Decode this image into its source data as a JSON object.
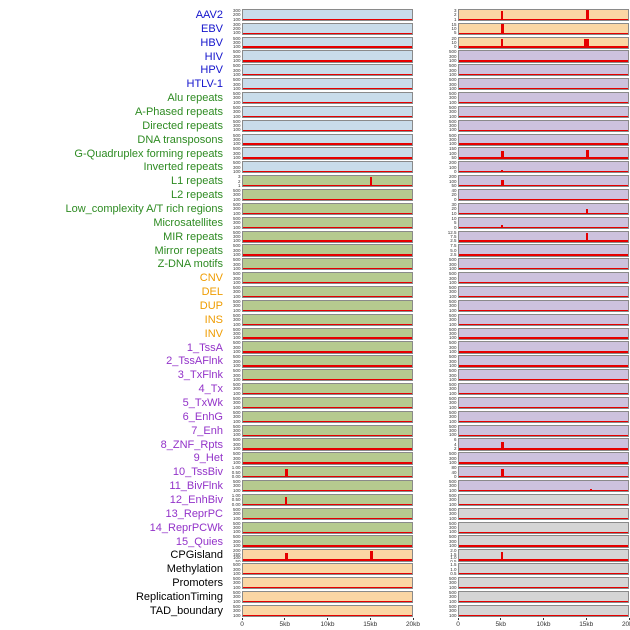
{
  "chart_data": {
    "type": "line",
    "description": "Per-feature signal profile tracks around a genomic position, two panel columns, red signal line on colored backgrounds",
    "x_axis": {
      "ticks": [
        "0",
        "5kb",
        "10kb",
        "15kb",
        "20kb"
      ],
      "range_kb": [
        0,
        20
      ]
    },
    "default_yticks": [
      "500",
      "300",
      "100"
    ],
    "rows": [
      {
        "label": "AAV2",
        "group": "virus",
        "left": {
          "bg": "blue",
          "yticks": [
            "300",
            "200",
            "100"
          ]
        },
        "right": {
          "bg": "orange",
          "yticks": [
            "3",
            "2",
            "1"
          ],
          "spikes": [
            {
              "pos_kb": 5,
              "rel_height": 0.92,
              "w": 2
            },
            {
              "pos_kb": 15,
              "rel_height": 0.95,
              "w": 3
            }
          ]
        }
      },
      {
        "label": "EBV",
        "group": "virus",
        "left": {
          "bg": "blue",
          "yticks": [
            "300",
            "200",
            "100"
          ]
        },
        "right": {
          "bg": "orange",
          "yticks": [
            "15",
            "10",
            "5"
          ],
          "spikes": [
            {
              "pos_kb": 5,
              "rel_height": 0.95,
              "w": 3
            }
          ]
        }
      },
      {
        "label": "HBV",
        "group": "virus",
        "left": {
          "bg": "blue"
        },
        "right": {
          "bg": "orange",
          "yticks": [
            "20",
            "10",
            "0"
          ],
          "spikes": [
            {
              "pos_kb": 5,
              "rel_height": 0.9,
              "w": 2
            },
            {
              "pos_kb": 14.8,
              "rel_height": 0.88,
              "w": 5
            }
          ]
        }
      },
      {
        "label": "HIV",
        "group": "virus",
        "left": {
          "bg": "blue"
        },
        "right": {
          "bg": "purple"
        }
      },
      {
        "label": "HPV",
        "group": "virus",
        "left": {
          "bg": "blue"
        },
        "right": {
          "bg": "purple"
        }
      },
      {
        "label": "HTLV-1",
        "group": "virus",
        "left": {
          "bg": "blue"
        },
        "right": {
          "bg": "purple"
        }
      },
      {
        "label": "Alu repeats",
        "group": "repeat",
        "left": {
          "bg": "blue"
        },
        "right": {
          "bg": "purple"
        }
      },
      {
        "label": "A-Phased repeats",
        "group": "repeat",
        "left": {
          "bg": "blue"
        },
        "right": {
          "bg": "purple"
        }
      },
      {
        "label": "Directed repeats",
        "group": "repeat",
        "left": {
          "bg": "blue"
        },
        "right": {
          "bg": "purple"
        }
      },
      {
        "label": "DNA transposons",
        "group": "repeat",
        "left": {
          "bg": "blue"
        },
        "right": {
          "bg": "purple"
        }
      },
      {
        "label": "G-Quadruplex forming repeats",
        "group": "repeat",
        "left": {
          "bg": "blue"
        },
        "right": {
          "bg": "purple",
          "yticks": [
            "150",
            "100",
            "50"
          ],
          "spikes": [
            {
              "pos_kb": 5,
              "rel_height": 0.7,
              "w": 3
            },
            {
              "pos_kb": 15,
              "rel_height": 0.8,
              "w": 3
            }
          ]
        }
      },
      {
        "label": "Inverted repeats",
        "group": "repeat",
        "left": {
          "bg": "blue"
        },
        "right": {
          "bg": "purple",
          "yticks": [
            "200",
            "100",
            "0"
          ],
          "spikes": [
            {
              "pos_kb": 5,
              "rel_height": 0.22,
              "w": 2
            }
          ]
        }
      },
      {
        "label": "L1 repeats",
        "group": "repeat",
        "left": {
          "bg": "green",
          "yticks": [
            "3",
            "2",
            "1"
          ],
          "spikes": [
            {
              "pos_kb": 15,
              "rel_height": 0.9,
              "w": 2
            }
          ]
        },
        "right": {
          "bg": "purple",
          "yticks": [
            "200",
            "100",
            "50"
          ],
          "spikes": [
            {
              "pos_kb": 5,
              "rel_height": 0.6,
              "w": 3
            }
          ]
        }
      },
      {
        "label": "L2 repeats",
        "group": "repeat",
        "left": {
          "bg": "green"
        },
        "right": {
          "bg": "purple",
          "yticks": [
            "40",
            "20",
            "0"
          ]
        }
      },
      {
        "label": "Low_complexity A/T rich regions",
        "group": "repeat",
        "left": {
          "bg": "green"
        },
        "right": {
          "bg": "purple",
          "yticks": [
            "30",
            "20",
            "10"
          ],
          "spikes": [
            {
              "pos_kb": 15,
              "rel_height": 0.5,
              "w": 2
            }
          ]
        }
      },
      {
        "label": "Microsatellites",
        "group": "repeat",
        "left": {
          "bg": "green"
        },
        "right": {
          "bg": "purple",
          "yticks": [
            "10",
            "5",
            "0"
          ],
          "spikes": [
            {
              "pos_kb": 5,
              "rel_height": 0.3,
              "w": 2
            }
          ]
        }
      },
      {
        "label": "MIR repeats",
        "group": "repeat",
        "left": {
          "bg": "green"
        },
        "right": {
          "bg": "purple",
          "yticks": [
            "12.5",
            "7.5",
            "2.5"
          ],
          "spikes": [
            {
              "pos_kb": 15,
              "rel_height": 0.85,
              "w": 2
            }
          ]
        }
      },
      {
        "label": "Mirror repeats",
        "group": "repeat",
        "left": {
          "bg": "green"
        },
        "right": {
          "bg": "purple",
          "yticks": [
            "7.5",
            "5.0",
            "2.5"
          ],
          "spikes": [
            {
              "pos_kb": 15,
              "rel_height": 0.2,
              "w": 2
            }
          ]
        }
      },
      {
        "label": "Z-DNA motifs",
        "group": "repeat",
        "left": {
          "bg": "green"
        },
        "right": {
          "bg": "purple"
        }
      },
      {
        "label": "CNV",
        "group": "sv",
        "left": {
          "bg": "green"
        },
        "right": {
          "bg": "purple"
        }
      },
      {
        "label": "DEL",
        "group": "sv",
        "left": {
          "bg": "green"
        },
        "right": {
          "bg": "purple"
        }
      },
      {
        "label": "DUP",
        "group": "sv",
        "left": {
          "bg": "green"
        },
        "right": {
          "bg": "purple"
        }
      },
      {
        "label": "INS",
        "group": "sv",
        "left": {
          "bg": "green"
        },
        "right": {
          "bg": "purple"
        }
      },
      {
        "label": "INV",
        "group": "sv",
        "left": {
          "bg": "green"
        },
        "right": {
          "bg": "purple"
        }
      },
      {
        "label": "1_TssA",
        "group": "state",
        "left": {
          "bg": "green"
        },
        "right": {
          "bg": "purple"
        }
      },
      {
        "label": "2_TssAFlnk",
        "group": "state",
        "left": {
          "bg": "green"
        },
        "right": {
          "bg": "purple"
        }
      },
      {
        "label": "3_TxFlnk",
        "group": "state",
        "left": {
          "bg": "green"
        },
        "right": {
          "bg": "purple"
        }
      },
      {
        "label": "4_Tx",
        "group": "state",
        "left": {
          "bg": "green"
        },
        "right": {
          "bg": "purple"
        }
      },
      {
        "label": "5_TxWk",
        "group": "state",
        "left": {
          "bg": "green"
        },
        "right": {
          "bg": "purple"
        }
      },
      {
        "label": "6_EnhG",
        "group": "state",
        "left": {
          "bg": "green"
        },
        "right": {
          "bg": "purple"
        }
      },
      {
        "label": "7_Enh",
        "group": "state",
        "left": {
          "bg": "green"
        },
        "right": {
          "bg": "purple"
        }
      },
      {
        "label": "8_ZNF_Rpts",
        "group": "state",
        "left": {
          "bg": "green"
        },
        "right": {
          "bg": "purple",
          "yticks": [
            "6",
            "4",
            "2"
          ],
          "spikes": [
            {
              "pos_kb": 5,
              "rel_height": 0.75,
              "w": 3
            }
          ]
        }
      },
      {
        "label": "9_Het",
        "group": "state",
        "left": {
          "bg": "green"
        },
        "right": {
          "bg": "purple"
        }
      },
      {
        "label": "10_TssBiv",
        "group": "state",
        "left": {
          "bg": "green",
          "yticks": [
            "1.00",
            "0.50",
            "0.00"
          ],
          "spikes": [
            {
              "pos_kb": 5,
              "rel_height": 0.85,
              "w": 3
            }
          ]
        },
        "right": {
          "bg": "purple",
          "yticks": [
            "80",
            "40",
            "0"
          ],
          "spikes": [
            {
              "pos_kb": 5,
              "rel_height": 0.8,
              "w": 3
            }
          ]
        }
      },
      {
        "label": "11_BivFlnk",
        "group": "state",
        "left": {
          "bg": "green"
        },
        "right": {
          "bg": "purple",
          "spikes": [
            {
              "pos_kb": 15.5,
              "rel_height": 0.22,
              "w": 2
            }
          ]
        }
      },
      {
        "label": "12_EnhBiv",
        "group": "state",
        "left": {
          "bg": "green",
          "yticks": [
            "1.00",
            "0.50",
            "0.00"
          ],
          "spikes": [
            {
              "pos_kb": 5,
              "rel_height": 0.8,
              "w": 2
            }
          ]
        },
        "right": {
          "bg": "gray"
        }
      },
      {
        "label": "13_ReprPC",
        "group": "state",
        "left": {
          "bg": "green"
        },
        "right": {
          "bg": "gray"
        }
      },
      {
        "label": "14_ReprPCWk",
        "group": "state",
        "left": {
          "bg": "green"
        },
        "right": {
          "bg": "gray"
        }
      },
      {
        "label": "15_Quies",
        "group": "state",
        "left": {
          "bg": "green"
        },
        "right": {
          "bg": "gray"
        }
      },
      {
        "label": "CPGisland",
        "group": "other",
        "left": {
          "bg": "orange",
          "yticks": [
            "200",
            "150",
            "100",
            "50"
          ],
          "spikes": [
            {
              "pos_kb": 5,
              "rel_height": 0.75,
              "w": 3
            },
            {
              "pos_kb": 15,
              "rel_height": 0.9,
              "w": 3
            }
          ]
        },
        "right": {
          "bg": "gray",
          "yticks": [
            "2.0",
            "1.5",
            "1.0",
            "0.5"
          ],
          "spikes": [
            {
              "pos_kb": 5,
              "rel_height": 0.8,
              "w": 2
            }
          ]
        }
      },
      {
        "label": "Methylation",
        "group": "other",
        "left": {
          "bg": "orange"
        },
        "right": {
          "bg": "gray",
          "yticks": [
            "1.5",
            "1.0",
            "0.5"
          ]
        }
      },
      {
        "label": "Promoters",
        "group": "other",
        "left": {
          "bg": "orange"
        },
        "right": {
          "bg": "gray"
        }
      },
      {
        "label": "ReplicationTiming",
        "group": "other",
        "left": {
          "bg": "orange"
        },
        "right": {
          "bg": "gray"
        }
      },
      {
        "label": "TAD_boundary",
        "group": "other",
        "left": {
          "bg": "orange"
        },
        "right": {
          "bg": "gray"
        }
      }
    ]
  },
  "colors": {
    "panel_colors": {
      "blue": "#C9DCEA",
      "green": "#B6CA8F",
      "orange": "#FBD6A4",
      "purple": "#CDC2DE",
      "gray": "#D5D5D5"
    },
    "label_colors": {
      "virus": "#1414CC",
      "repeat": "#2E8B22",
      "sv": "#EF9C00",
      "state": "#9333C9",
      "other": "#000000"
    },
    "signal_color": "#E60000",
    "panel_border": "#8A8A8A"
  }
}
